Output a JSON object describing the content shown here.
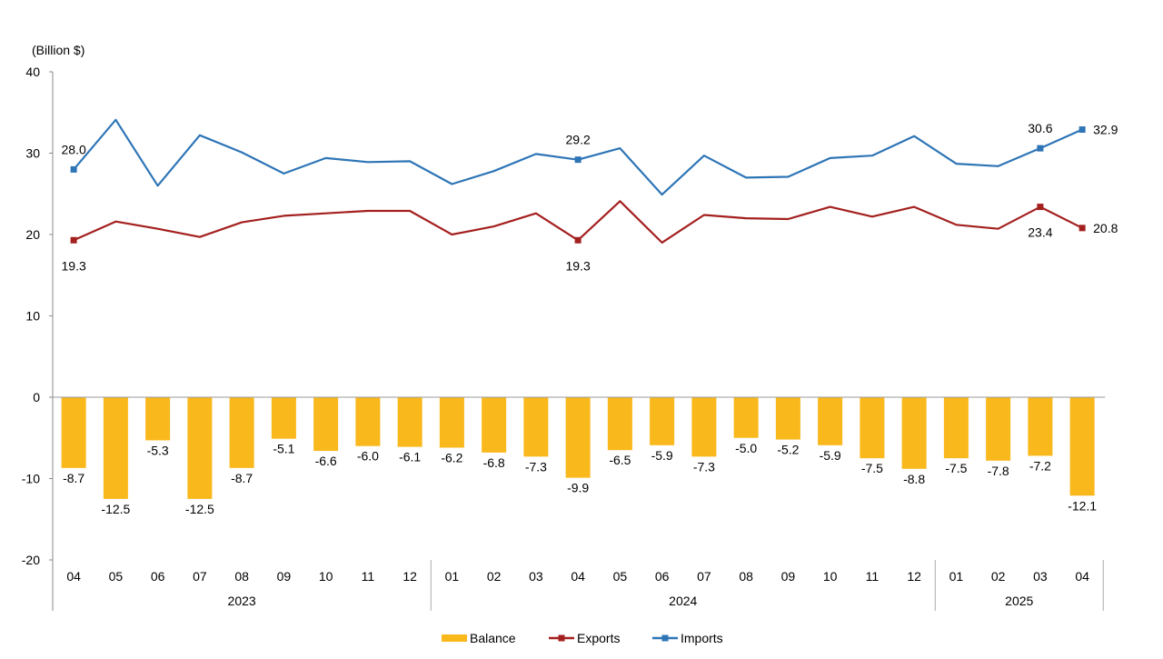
{
  "chart_data": {
    "type": "bar",
    "unit_label": "(Billion $)",
    "categories": [
      "04",
      "05",
      "06",
      "07",
      "08",
      "09",
      "10",
      "11",
      "12",
      "01",
      "02",
      "03",
      "04",
      "05",
      "06",
      "07",
      "08",
      "09",
      "10",
      "11",
      "12",
      "01",
      "02",
      "03",
      "04"
    ],
    "year_groups": [
      {
        "label": "2023",
        "start": 0,
        "end": 8
      },
      {
        "label": "2024",
        "start": 9,
        "end": 20
      },
      {
        "label": "2025",
        "start": 21,
        "end": 24
      }
    ],
    "ylim": [
      -20,
      40
    ],
    "yticks": [
      -20,
      -10,
      0,
      10,
      20,
      30,
      40
    ],
    "series": [
      {
        "name": "Balance",
        "kind": "bar",
        "color": "#F9B81B",
        "values": [
          -8.7,
          -12.5,
          -5.3,
          -12.5,
          -8.7,
          -5.1,
          -6.6,
          -6.0,
          -6.1,
          -6.2,
          -6.8,
          -7.3,
          -9.9,
          -6.5,
          -5.9,
          -7.3,
          -5.0,
          -5.2,
          -5.9,
          -7.5,
          -8.8,
          -7.5,
          -7.8,
          -7.2,
          -12.1
        ],
        "labels": [
          "-8.7",
          "-12.5",
          "-5.3",
          "-12.5",
          "-8.7",
          "-5.1",
          "-6.6",
          "-6.0",
          "-6.1",
          "-6.2",
          "-6.8",
          "-7.3",
          "-9.9",
          "-6.5",
          "-5.9",
          "-7.3",
          "-5.0",
          "-5.2",
          "-5.9",
          "-7.5",
          "-8.8",
          "-7.5",
          "-7.8",
          "-7.2",
          "-12.1"
        ]
      },
      {
        "name": "Exports",
        "kind": "line",
        "color": "#A3201F",
        "values": [
          19.3,
          21.6,
          20.7,
          19.7,
          21.5,
          22.3,
          22.6,
          22.9,
          22.9,
          20.0,
          21.0,
          22.6,
          19.3,
          24.1,
          19.0,
          22.4,
          22.0,
          21.9,
          23.4,
          22.2,
          23.4,
          21.2,
          20.7,
          23.4,
          20.8
        ],
        "markers": [
          0,
          12,
          23,
          24
        ],
        "labels": [
          {
            "i": 0,
            "text": "19.3",
            "pos": "below"
          },
          {
            "i": 12,
            "text": "19.3",
            "pos": "below"
          },
          {
            "i": 23,
            "text": "23.4",
            "pos": "below"
          },
          {
            "i": 24,
            "text": "20.8",
            "pos": "right"
          }
        ]
      },
      {
        "name": "Imports",
        "kind": "line",
        "color": "#2E75B6",
        "values": [
          28.0,
          34.1,
          26.0,
          32.2,
          30.1,
          27.5,
          29.4,
          28.9,
          29.0,
          26.2,
          27.8,
          29.9,
          29.2,
          30.6,
          24.9,
          29.7,
          27.0,
          27.1,
          29.4,
          29.7,
          32.1,
          28.7,
          28.4,
          30.6,
          32.9
        ],
        "markers": [
          0,
          12,
          23,
          24
        ],
        "labels": [
          {
            "i": 0,
            "text": "28.0",
            "pos": "above"
          },
          {
            "i": 12,
            "text": "29.2",
            "pos": "above"
          },
          {
            "i": 23,
            "text": "30.6",
            "pos": "above"
          },
          {
            "i": 24,
            "text": "32.9",
            "pos": "right"
          }
        ]
      }
    ],
    "legend": {
      "position": "bottom",
      "items": [
        "Balance",
        "Exports",
        "Imports"
      ]
    }
  }
}
